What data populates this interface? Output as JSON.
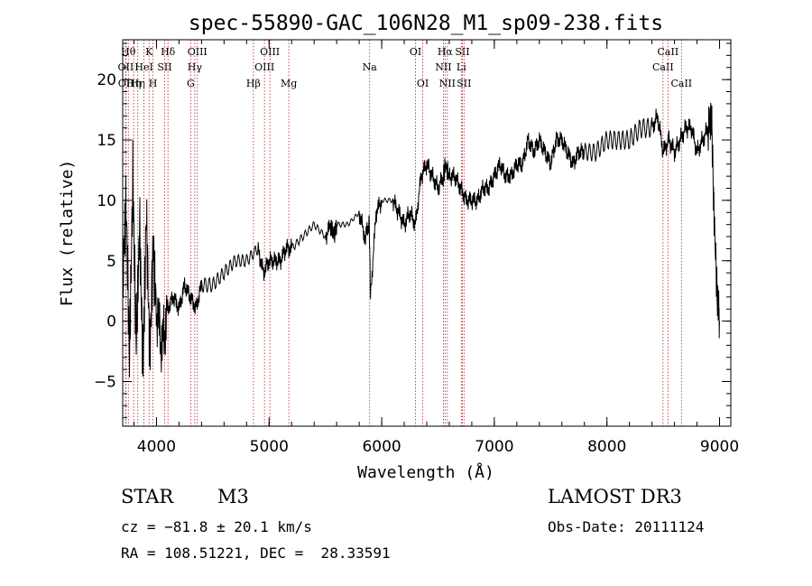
{
  "chart_data": {
    "type": "line",
    "title": "spec-55890-GAC_106N28_M1_sp09-238.fits",
    "xlabel": "Wavelength (Å)",
    "ylabel": "Flux (relative)",
    "xlim": [
      3700,
      9100
    ],
    "ylim": [
      -8.7,
      23.3
    ],
    "xticks": [
      4000,
      5000,
      6000,
      7000,
      8000,
      9000
    ],
    "xtick_labels": [
      "4000",
      "5000",
      "6000",
      "7000",
      "8000",
      "9000"
    ],
    "yticks": [
      -5,
      0,
      5,
      10,
      15,
      20
    ],
    "ytick_labels": [
      "−5",
      "0",
      "5",
      "10",
      "15",
      "20"
    ],
    "series": [
      {
        "name": "flux",
        "x": [
          3700,
          3730,
          3760,
          3790,
          3820,
          3850,
          3880,
          3910,
          3940,
          3970,
          4000,
          4050,
          4100,
          4150,
          4200,
          4250,
          4300,
          4350,
          4400,
          4500,
          4600,
          4700,
          4800,
          4900,
          4950,
          5000,
          5050,
          5100,
          5150,
          5200,
          5300,
          5400,
          5500,
          5550,
          5580,
          5600,
          5700,
          5800,
          5850,
          5890,
          5900,
          5950,
          6000,
          6100,
          6150,
          6200,
          6250,
          6300,
          6350,
          6400,
          6450,
          6500,
          6550,
          6563,
          6600,
          6650,
          6700,
          6750,
          6800,
          6850,
          6900,
          6950,
          7000,
          7050,
          7100,
          7150,
          7200,
          7250,
          7300,
          7350,
          7400,
          7450,
          7500,
          7550,
          7600,
          7650,
          7700,
          7750,
          7800,
          7900,
          8000,
          8100,
          8200,
          8300,
          8400,
          8450,
          8500,
          8550,
          8600,
          8650,
          8700,
          8750,
          8800,
          8850,
          8900,
          8930,
          8950,
          8980,
          9000
        ],
        "y": [
          3,
          10,
          -3,
          12,
          -2,
          8,
          -4,
          9,
          -3,
          6,
          1,
          -2,
          1,
          2,
          1,
          3,
          2,
          1,
          3,
          3,
          4,
          5,
          5,
          6,
          4,
          5,
          5,
          5,
          6,
          6,
          7,
          8,
          7,
          8,
          7,
          8,
          8,
          9,
          7,
          8,
          2,
          9,
          10,
          10,
          9,
          8,
          9,
          8,
          12,
          13,
          12,
          11,
          12,
          13,
          12,
          12,
          11,
          10,
          10,
          10,
          11,
          11,
          12,
          13,
          12,
          12,
          13,
          13,
          15,
          14,
          15,
          14,
          13,
          15,
          15,
          14,
          13,
          14,
          14,
          14,
          15,
          15,
          15,
          16,
          16,
          17,
          14,
          15,
          14,
          15,
          16,
          16,
          14,
          15,
          16,
          17,
          9,
          2,
          0
        ]
      }
    ],
    "lines": [
      {
        "wl": 3750,
        "label": "Hθ",
        "row": 0
      },
      {
        "wl": 3727,
        "label": "OII",
        "row": 1
      },
      {
        "wl": 3729,
        "label": "OII",
        "row": 2
      },
      {
        "wl": 3798,
        "label": "Hη",
        "row": 2
      },
      {
        "wl": 3834,
        "label": "Hη",
        "row": 2
      },
      {
        "wl": 3889,
        "label": "HeI",
        "row": 1
      },
      {
        "wl": 3934,
        "label": "K",
        "row": 0
      },
      {
        "wl": 3969,
        "label": "H",
        "row": 2
      },
      {
        "wl": 4072,
        "label": "SII",
        "row": 1
      },
      {
        "wl": 4102,
        "label": "Hδ",
        "row": 0
      },
      {
        "wl": 4304,
        "label": "G",
        "row": 2
      },
      {
        "wl": 4340,
        "label": "Hγ",
        "row": 1
      },
      {
        "wl": 4363,
        "label": "OIII",
        "row": 0
      },
      {
        "wl": 4861,
        "label": "Hβ",
        "row": 2
      },
      {
        "wl": 4959,
        "label": "OIII",
        "row": 1
      },
      {
        "wl": 5007,
        "label": "OIII",
        "row": 0
      },
      {
        "wl": 5175,
        "label": "Mg",
        "row": 2
      },
      {
        "wl": 5893,
        "label": "Na",
        "row": 1
      },
      {
        "wl": 6300,
        "label": "OI",
        "row": 0
      },
      {
        "wl": 6364,
        "label": "OI",
        "row": 2
      },
      {
        "wl": 6548,
        "label": "NII",
        "row": 1
      },
      {
        "wl": 6563,
        "label": "Hα",
        "row": 0
      },
      {
        "wl": 6583,
        "label": "NII",
        "row": 2
      },
      {
        "wl": 6707,
        "label": "Li",
        "row": 1
      },
      {
        "wl": 6716,
        "label": "SII",
        "row": 0
      },
      {
        "wl": 6731,
        "label": "SII",
        "row": 2
      },
      {
        "wl": 8498,
        "label": "CaII",
        "row": 1
      },
      {
        "wl": 8542,
        "label": "CaII",
        "row": 0
      },
      {
        "wl": 8662,
        "label": "CaII",
        "row": 2
      }
    ]
  },
  "info": {
    "object_class": "STAR",
    "subclass": "M3",
    "redshift": "cz = −81.8 ± 20.1 km/s",
    "coords": "RA = 108.51221, DEC =  28.33591",
    "survey": "LAMOST DR3",
    "obs_date": "Obs-Date: 20111124"
  }
}
